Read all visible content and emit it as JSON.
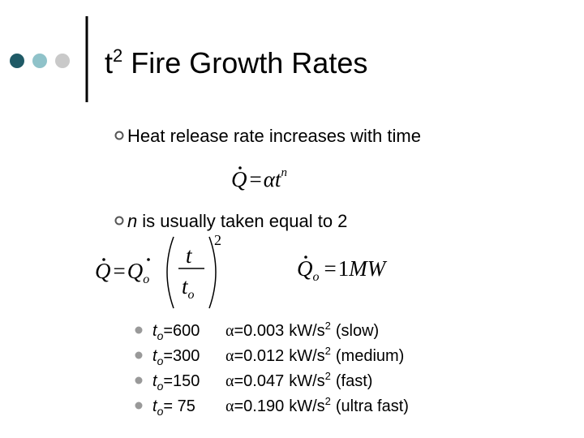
{
  "header": {
    "title_base": "t",
    "title_sup": "2",
    "title_rest": "Fire Growth Rates"
  },
  "bullets": [
    {
      "text": "Heat release rate increases with time"
    },
    {
      "var": "n",
      "text": "is usually taken equal to 2"
    }
  ],
  "equation_1": {
    "lhs": "Q",
    "eq": "=",
    "coef": "α",
    "var": "t",
    "exp": "n"
  },
  "equation_2": {
    "lhs": "Q",
    "eq": "=",
    "ref": "Q",
    "ref_sub": "o",
    "num": "t",
    "den": "t",
    "den_sub": "o",
    "exp": "2"
  },
  "equation_3": {
    "lhs": "Q",
    "lhs_sub": "o",
    "eq": "=",
    "value": "1",
    "unit": "MW"
  },
  "rates": [
    {
      "t_var": "t",
      "t_sub": "o",
      "t_value": "=600",
      "alpha": "α",
      "alpha_value": "=0.003",
      "unit": "kW/s",
      "unit_sup": "2",
      "label": "(slow)"
    },
    {
      "t_var": "t",
      "t_sub": "o",
      "t_value": "=300",
      "alpha": "α",
      "alpha_value": "=0.012",
      "unit": "kW/s",
      "unit_sup": "2",
      "label": "(medium)"
    },
    {
      "t_var": "t",
      "t_sub": "o",
      "t_value": "=150",
      "alpha": "α",
      "alpha_value": "=0.047",
      "unit": "kW/s",
      "unit_sup": "2",
      "label": "(fast)"
    },
    {
      "t_var": "t",
      "t_sub": "o",
      "t_value": "= 75",
      "alpha": "α",
      "alpha_value": "=0.190",
      "unit": "kW/s",
      "unit_sup": "2",
      "label": "(ultra fast)"
    }
  ]
}
